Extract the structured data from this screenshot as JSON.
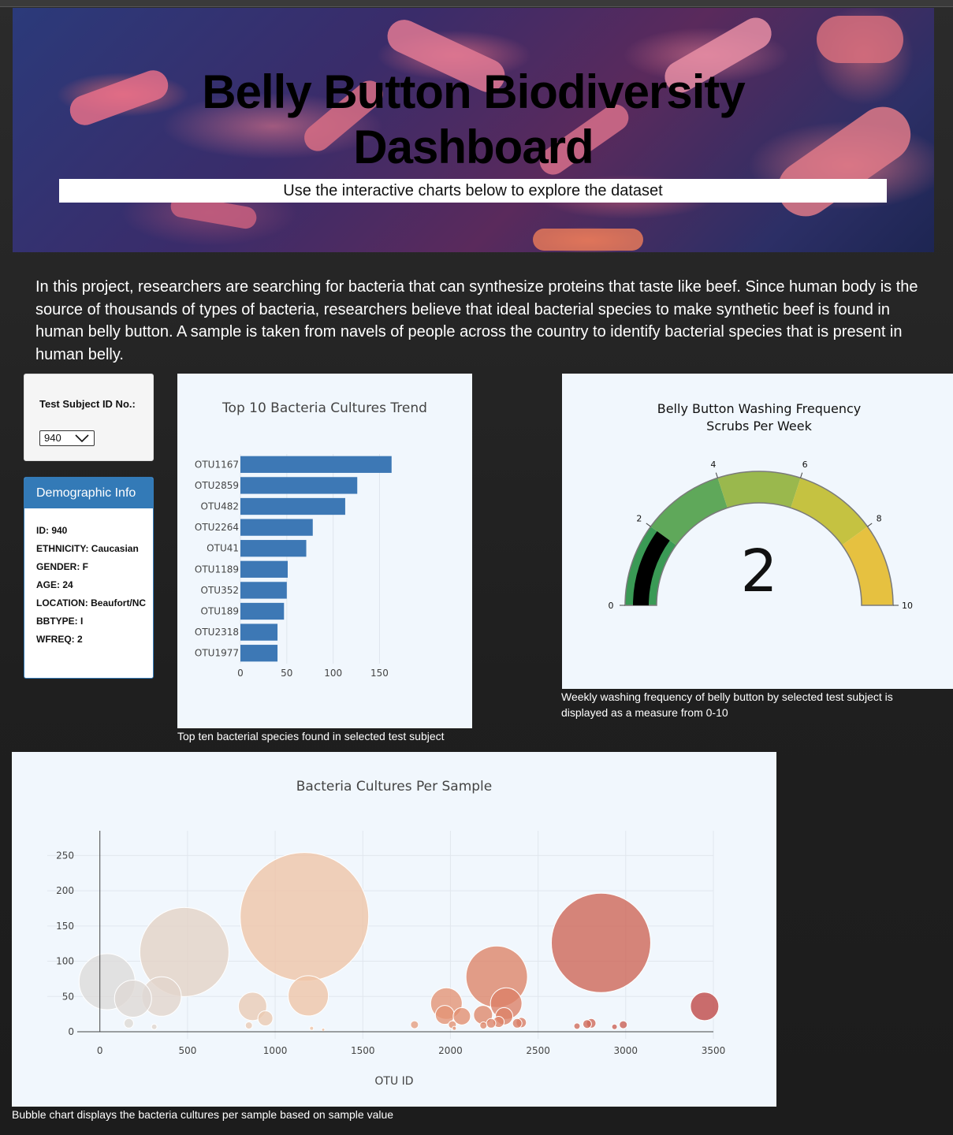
{
  "header": {
    "title_line1": "Belly Button Biodiversity",
    "title_line2": "Dashboard",
    "subtitle": "Use the interactive charts below to explore the dataset"
  },
  "intro": "In this project, researchers are searching for bacteria that can synthesize proteins that taste like beef. Since human body is the source of thousands of types of bacteria, researchers believe that ideal bacterial species to make synthetic beef is found in human belly button. A sample is taken from navels of people across the country to identify bacterial species that is present in human belly.",
  "selector": {
    "label": "Test Subject ID No.:",
    "selected": "940"
  },
  "demographic": {
    "title": "Demographic Info",
    "lines": [
      "ID: 940",
      "ETHNICITY: Caucasian",
      "GENDER: F",
      "AGE: 24",
      "LOCATION: Beaufort/NC",
      "BBTYPE: I",
      "WFREQ: 2"
    ]
  },
  "captions": {
    "bar": "Top ten bacterial species found in selected test subject",
    "gauge": "Weekly washing frequency of belly button by selected test subject is displayed as a measure from 0-10",
    "bubble": "Bubble chart displays the bacteria cultures per sample based on sample value"
  },
  "colors": {
    "bar": "#3d78b5",
    "panel_bg": "#f1f7fd",
    "demo_header": "#337ab7",
    "gauge_needle": "#000000"
  },
  "chart_data": [
    {
      "type": "bar",
      "orientation": "horizontal",
      "title": "Top 10 Bacteria Cultures Trend",
      "categories": [
        "OTU1167",
        "OTU2859",
        "OTU482",
        "OTU2264",
        "OTU41",
        "OTU1189",
        "OTU352",
        "OTU189",
        "OTU2318",
        "OTU1977"
      ],
      "values": [
        163,
        126,
        113,
        78,
        71,
        51,
        50,
        47,
        40,
        40
      ],
      "xlim": [
        0,
        170
      ],
      "xticks": [
        0,
        50,
        100,
        150
      ],
      "grid": true
    },
    {
      "type": "gauge",
      "title_line1": "Belly Button Washing Frequency",
      "title_line2": "Scrubs Per Week",
      "value": 2,
      "range": [
        0,
        10
      ],
      "ticks": [
        0,
        2,
        4,
        6,
        8,
        10
      ],
      "steps": [
        {
          "range": [
            0,
            2
          ],
          "color": "#3a9a55"
        },
        {
          "range": [
            2,
            4
          ],
          "color": "#5fa85a"
        },
        {
          "range": [
            4,
            6
          ],
          "color": "#9ab84d"
        },
        {
          "range": [
            6,
            8
          ],
          "color": "#c5c241"
        },
        {
          "range": [
            8,
            10
          ],
          "color": "#e6c140"
        }
      ]
    },
    {
      "type": "scatter",
      "title": "Bacteria Cultures Per Sample",
      "xlabel": "OTU ID",
      "ylabel": "",
      "xlim": [
        -300,
        3500
      ],
      "ylim": [
        -10,
        285
      ],
      "xticks": [
        0,
        500,
        1000,
        1500,
        2000,
        2500,
        3000,
        3500
      ],
      "yticks": [
        0,
        50,
        100,
        150,
        200,
        250
      ],
      "colorscale_range": [
        0,
        3500
      ],
      "grid": true,
      "points": [
        {
          "x": 41,
          "y": 71
        },
        {
          "x": 189,
          "y": 47
        },
        {
          "x": 165,
          "y": 12
        },
        {
          "x": 310,
          "y": 7
        },
        {
          "x": 352,
          "y": 50
        },
        {
          "x": 482,
          "y": 113
        },
        {
          "x": 850,
          "y": 9
        },
        {
          "x": 871,
          "y": 36
        },
        {
          "x": 944,
          "y": 19
        },
        {
          "x": 1167,
          "y": 163
        },
        {
          "x": 1189,
          "y": 51
        },
        {
          "x": 1208,
          "y": 5
        },
        {
          "x": 1274,
          "y": 3
        },
        {
          "x": 1795,
          "y": 10
        },
        {
          "x": 1977,
          "y": 40
        },
        {
          "x": 1968,
          "y": 24
        },
        {
          "x": 2011,
          "y": 10
        },
        {
          "x": 2022,
          "y": 5
        },
        {
          "x": 2065,
          "y": 22
        },
        {
          "x": 2186,
          "y": 24
        },
        {
          "x": 2188,
          "y": 9
        },
        {
          "x": 2264,
          "y": 78
        },
        {
          "x": 2318,
          "y": 40
        },
        {
          "x": 2306,
          "y": 22
        },
        {
          "x": 2275,
          "y": 14
        },
        {
          "x": 2232,
          "y": 12
        },
        {
          "x": 2381,
          "y": 12
        },
        {
          "x": 2404,
          "y": 13
        },
        {
          "x": 2722,
          "y": 8
        },
        {
          "x": 2780,
          "y": 11
        },
        {
          "x": 2803,
          "y": 12
        },
        {
          "x": 2859,
          "y": 126
        },
        {
          "x": 2936,
          "y": 7
        },
        {
          "x": 2986,
          "y": 10
        },
        {
          "x": 3450,
          "y": 36
        }
      ]
    }
  ]
}
